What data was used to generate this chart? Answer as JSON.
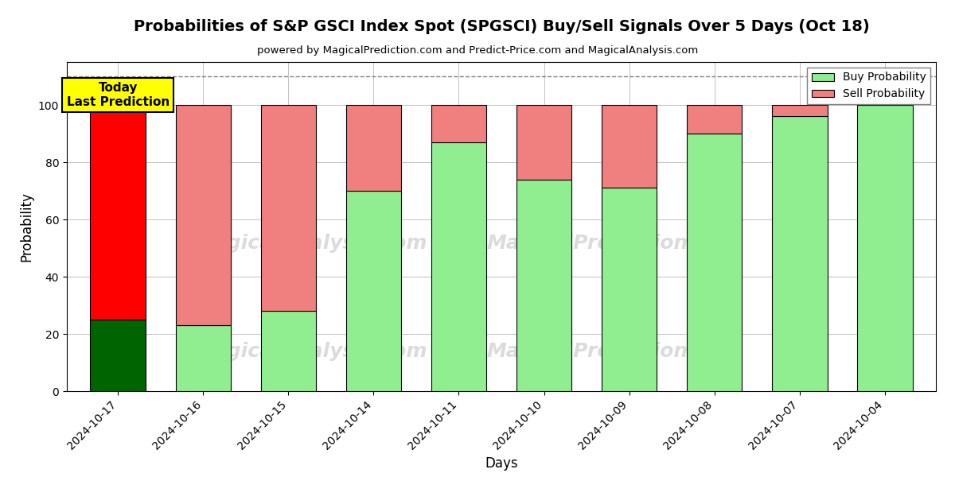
{
  "title": "Probabilities of S&P GSCI Index Spot (SPGSCI) Buy/Sell Signals Over 5 Days (Oct 18)",
  "subtitle": "powered by MagicalPrediction.com and Predict-Price.com and MagicalAnalysis.com",
  "xlabel": "Days",
  "ylabel": "Probability",
  "dates": [
    "2024-10-17",
    "2024-10-16",
    "2024-10-15",
    "2024-10-14",
    "2024-10-11",
    "2024-10-10",
    "2024-10-09",
    "2024-10-08",
    "2024-10-07",
    "2024-10-04"
  ],
  "buy_values": [
    25,
    23,
    28,
    70,
    87,
    74,
    71,
    90,
    96,
    100
  ],
  "sell_values": [
    75,
    77,
    72,
    30,
    13,
    26,
    29,
    10,
    4,
    0
  ],
  "today_buy_color": "#006400",
  "today_sell_color": "#ff0000",
  "buy_color": "#90EE90",
  "sell_color": "#F08080",
  "today_annotation_bg": "#ffff00",
  "dashed_line_y": 110,
  "ylim": [
    0,
    115
  ],
  "grid_color": "#aaaaaa",
  "legend_buy_color": "#90EE90",
  "legend_sell_color": "#F08080",
  "watermark_color": "#dddddd",
  "background_color": "#ffffff"
}
